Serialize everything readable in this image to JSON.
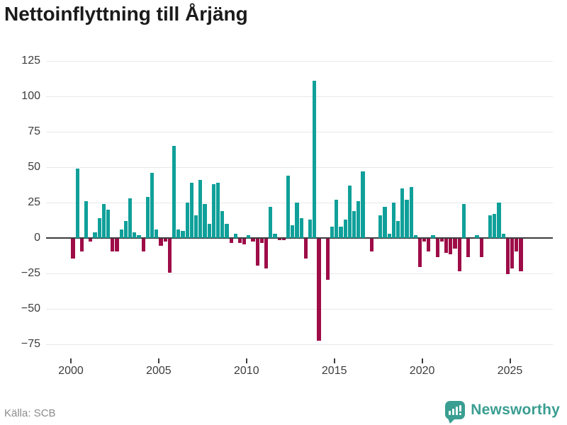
{
  "title": "Nettoinflyttning till Årjäng",
  "source": "Källa: SCB",
  "logo": {
    "text": "Newsworthy"
  },
  "colors": {
    "positive_bar": "#10a09a",
    "negative_bar": "#9e0c48",
    "logo_teal": "#3a9e92",
    "title_text": "#1b1b1b",
    "axis_text": "#3d3d3d",
    "muted_text": "#8c8c8c",
    "gridline": "#e8e8e8",
    "zero_line": "#3c3c3c"
  },
  "chart_data": {
    "type": "bar",
    "title": "Nettoinflyttning till Årjäng",
    "xlabel": "",
    "ylabel": "",
    "grid": true,
    "legend": false,
    "ylim": [
      -85,
      130
    ],
    "y_ticks": [
      125,
      100,
      75,
      50,
      25,
      0,
      -25,
      -50,
      -75
    ],
    "y_tick_labels": [
      "125",
      "100",
      "75",
      "50",
      "25",
      "0",
      "−25",
      "−50",
      "−75"
    ],
    "x_ticks": [
      2000,
      2005,
      2010,
      2015,
      2020,
      2025
    ],
    "x_tick_labels": [
      "2000",
      "2005",
      "2010",
      "2015",
      "2020",
      "2025"
    ],
    "x_unit": "quarter",
    "start": "2000 Q1",
    "end": "2025 Q3",
    "points": [
      {
        "q": "2000 Q1",
        "v": -14
      },
      {
        "q": "2000 Q2",
        "v": 49
      },
      {
        "q": "2000 Q3",
        "v": -9
      },
      {
        "q": "2000 Q4",
        "v": 26
      },
      {
        "q": "2001 Q1",
        "v": -2
      },
      {
        "q": "2001 Q2",
        "v": 4
      },
      {
        "q": "2001 Q3",
        "v": 14
      },
      {
        "q": "2001 Q4",
        "v": 24
      },
      {
        "q": "2002 Q1",
        "v": 20
      },
      {
        "q": "2002 Q2",
        "v": -9
      },
      {
        "q": "2002 Q3",
        "v": -9
      },
      {
        "q": "2002 Q4",
        "v": 6
      },
      {
        "q": "2003 Q1",
        "v": 12
      },
      {
        "q": "2003 Q2",
        "v": 28
      },
      {
        "q": "2003 Q3",
        "v": 4
      },
      {
        "q": "2003 Q4",
        "v": 2
      },
      {
        "q": "2004 Q1",
        "v": -9
      },
      {
        "q": "2004 Q2",
        "v": 29
      },
      {
        "q": "2004 Q3",
        "v": 46
      },
      {
        "q": "2004 Q4",
        "v": 6
      },
      {
        "q": "2005 Q1",
        "v": -5
      },
      {
        "q": "2005 Q2",
        "v": -2
      },
      {
        "q": "2005 Q3",
        "v": -24
      },
      {
        "q": "2005 Q4",
        "v": 65
      },
      {
        "q": "2006 Q1",
        "v": 6
      },
      {
        "q": "2006 Q2",
        "v": 5
      },
      {
        "q": "2006 Q3",
        "v": 25
      },
      {
        "q": "2006 Q4",
        "v": 39
      },
      {
        "q": "2007 Q1",
        "v": 16
      },
      {
        "q": "2007 Q2",
        "v": 41
      },
      {
        "q": "2007 Q3",
        "v": 24
      },
      {
        "q": "2007 Q4",
        "v": 10
      },
      {
        "q": "2008 Q1",
        "v": 38
      },
      {
        "q": "2008 Q2",
        "v": 39
      },
      {
        "q": "2008 Q3",
        "v": 19
      },
      {
        "q": "2008 Q4",
        "v": 10
      },
      {
        "q": "2009 Q1",
        "v": -3
      },
      {
        "q": "2009 Q2",
        "v": 3
      },
      {
        "q": "2009 Q3",
        "v": -3
      },
      {
        "q": "2009 Q4",
        "v": -4
      },
      {
        "q": "2010 Q1",
        "v": 2
      },
      {
        "q": "2010 Q2",
        "v": -2
      },
      {
        "q": "2010 Q3",
        "v": -19
      },
      {
        "q": "2010 Q4",
        "v": -3
      },
      {
        "q": "2011 Q1",
        "v": -21
      },
      {
        "q": "2011 Q2",
        "v": 22
      },
      {
        "q": "2011 Q3",
        "v": 3
      },
      {
        "q": "2011 Q4",
        "v": -1
      },
      {
        "q": "2012 Q1",
        "v": -1
      },
      {
        "q": "2012 Q2",
        "v": 44
      },
      {
        "q": "2012 Q3",
        "v": 9
      },
      {
        "q": "2012 Q4",
        "v": 25
      },
      {
        "q": "2013 Q1",
        "v": 14
      },
      {
        "q": "2013 Q2",
        "v": -14
      },
      {
        "q": "2013 Q3",
        "v": 13
      },
      {
        "q": "2013 Q4",
        "v": 111
      },
      {
        "q": "2014 Q1",
        "v": -72
      },
      {
        "q": "2014 Q2",
        "v": 0
      },
      {
        "q": "2014 Q3",
        "v": -29
      },
      {
        "q": "2014 Q4",
        "v": 8
      },
      {
        "q": "2015 Q1",
        "v": 27
      },
      {
        "q": "2015 Q2",
        "v": 8
      },
      {
        "q": "2015 Q3",
        "v": 13
      },
      {
        "q": "2015 Q4",
        "v": 37
      },
      {
        "q": "2016 Q1",
        "v": 19
      },
      {
        "q": "2016 Q2",
        "v": 26
      },
      {
        "q": "2016 Q3",
        "v": 47
      },
      {
        "q": "2016 Q4",
        "v": 0
      },
      {
        "q": "2017 Q1",
        "v": -9
      },
      {
        "q": "2017 Q2",
        "v": 0
      },
      {
        "q": "2017 Q3",
        "v": 16
      },
      {
        "q": "2017 Q4",
        "v": 22
      },
      {
        "q": "2018 Q1",
        "v": 3
      },
      {
        "q": "2018 Q2",
        "v": 25
      },
      {
        "q": "2018 Q3",
        "v": 12
      },
      {
        "q": "2018 Q4",
        "v": 35
      },
      {
        "q": "2019 Q1",
        "v": 27
      },
      {
        "q": "2019 Q2",
        "v": 36
      },
      {
        "q": "2019 Q3",
        "v": 2
      },
      {
        "q": "2019 Q4",
        "v": -20
      },
      {
        "q": "2020 Q1",
        "v": -2
      },
      {
        "q": "2020 Q2",
        "v": -9
      },
      {
        "q": "2020 Q3",
        "v": 2
      },
      {
        "q": "2020 Q4",
        "v": -13
      },
      {
        "q": "2021 Q1",
        "v": -2
      },
      {
        "q": "2021 Q2",
        "v": -10
      },
      {
        "q": "2021 Q3",
        "v": -11
      },
      {
        "q": "2021 Q4",
        "v": -7
      },
      {
        "q": "2022 Q1",
        "v": -23
      },
      {
        "q": "2022 Q2",
        "v": 24
      },
      {
        "q": "2022 Q3",
        "v": -13
      },
      {
        "q": "2022 Q4",
        "v": 0
      },
      {
        "q": "2023 Q1",
        "v": 2
      },
      {
        "q": "2023 Q2",
        "v": -13
      },
      {
        "q": "2023 Q3",
        "v": 0
      },
      {
        "q": "2023 Q4",
        "v": 16
      },
      {
        "q": "2024 Q1",
        "v": 17
      },
      {
        "q": "2024 Q2",
        "v": 25
      },
      {
        "q": "2024 Q3",
        "v": 3
      },
      {
        "q": "2024 Q4",
        "v": -25
      },
      {
        "q": "2025 Q1",
        "v": -21
      },
      {
        "q": "2025 Q2",
        "v": -9
      },
      {
        "q": "2025 Q3",
        "v": -23
      }
    ]
  }
}
